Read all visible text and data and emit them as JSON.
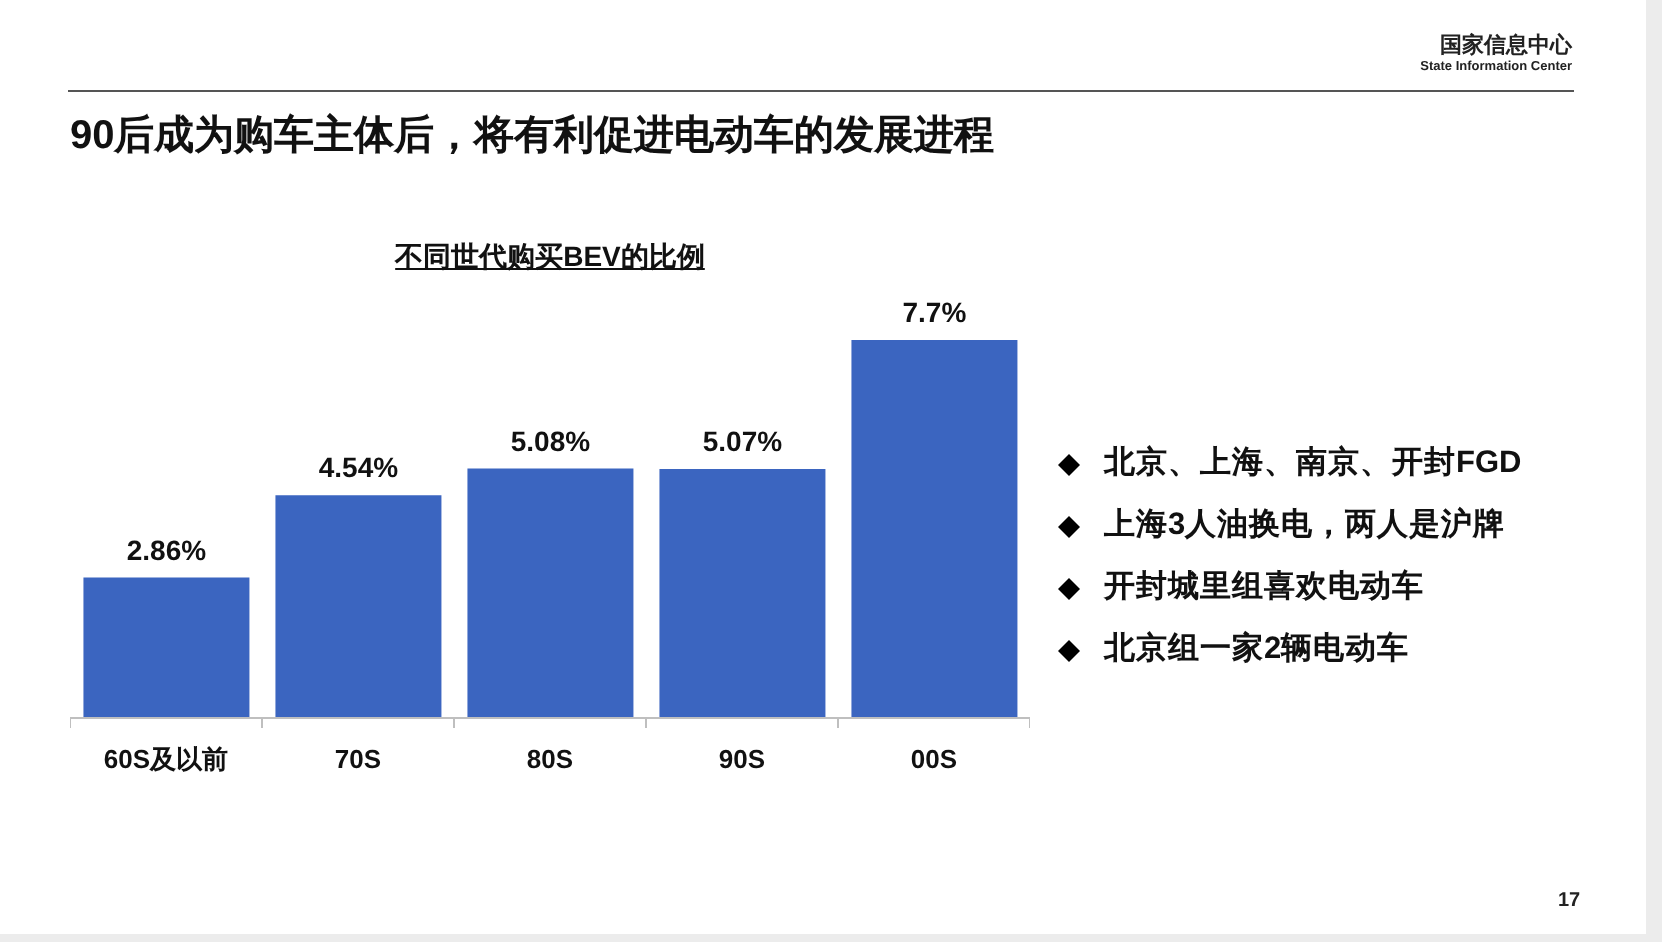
{
  "chart_data": {
    "type": "bar",
    "title": "90后成为购车主体后，将有利促进电动车的发展进程",
    "subtitle": "不同世代购买BEV的比例",
    "categories": [
      "60S及以前",
      "70S",
      "80S",
      "90S",
      "00S"
    ],
    "values": [
      2.86,
      4.54,
      5.08,
      5.07,
      7.7
    ],
    "value_labels": [
      "2.86%",
      "4.54%",
      "5.08%",
      "5.07%",
      "7.7%"
    ],
    "color": "#3b65c0",
    "annotations": [
      "国家信息中心",
      "State Information Center",
      "北京、上海、南京、开封FGD",
      "上海3人油换电，两人是沪牌",
      "开封城里组喜欢电动车",
      "北京组一家2辆电动车",
      "17"
    ]
  }
}
